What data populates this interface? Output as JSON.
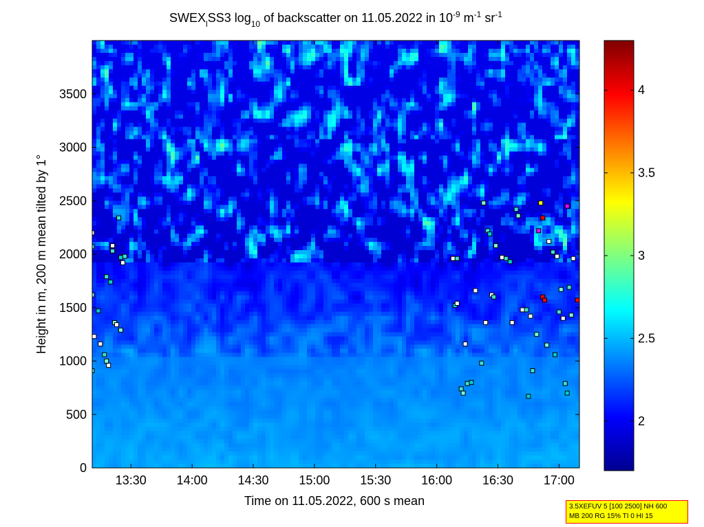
{
  "title": {
    "prefix": "SWEX",
    "subscript_1": "l",
    "middle": "SS3 log",
    "subscript_2": "10",
    "after_log": " of backscatter on 11.05.2022 in 10",
    "exp1": "-9",
    "unit_m": " m",
    "exp2": "-1",
    "unit_sr": " sr",
    "exp3": "-1"
  },
  "chart_data": {
    "type": "heatmap",
    "xlabel": "Time on 11.05.2022, 600 s mean",
    "ylabel": "Height in m, 200 m mean tilted by 1°",
    "x_range": [
      "13:11",
      "17:10"
    ],
    "x_ticks": [
      "13:30",
      "14:00",
      "14:30",
      "15:00",
      "15:30",
      "16:00",
      "16:30",
      "17:00"
    ],
    "ylim": [
      0,
      4000
    ],
    "y_ticks": [
      0,
      500,
      1000,
      1500,
      2000,
      2500,
      3000,
      3500
    ],
    "colorbar": {
      "range": [
        1.7,
        4.3
      ],
      "ticks": [
        2,
        2.5,
        3,
        3.5,
        4
      ],
      "colormap": "jet"
    },
    "cloud_markers_description": "cloud-base markers at scattered points",
    "marker_points": [
      {
        "t": "13:11",
        "h": 2200
      },
      {
        "t": "13:11",
        "h": 2070
      },
      {
        "t": "13:11",
        "h": 1620
      },
      {
        "t": "13:12",
        "h": 1230
      },
      {
        "t": "13:11",
        "h": 910
      },
      {
        "t": "13:14",
        "h": 1470
      },
      {
        "t": "13:15",
        "h": 1160
      },
      {
        "t": "13:17",
        "h": 1060
      },
      {
        "t": "13:18",
        "h": 1000
      },
      {
        "t": "13:19",
        "h": 960
      },
      {
        "t": "13:18",
        "h": 1790
      },
      {
        "t": "13:20",
        "h": 1740
      },
      {
        "t": "13:21",
        "h": 2080
      },
      {
        "t": "13:21",
        "h": 2030
      },
      {
        "t": "13:22",
        "h": 1360
      },
      {
        "t": "13:23",
        "h": 1340
      },
      {
        "t": "13:24",
        "h": 2340
      },
      {
        "t": "13:25",
        "h": 1970
      },
      {
        "t": "13:26",
        "h": 1920
      },
      {
        "t": "13:27",
        "h": 1980
      },
      {
        "t": "13:25",
        "h": 1290
      },
      {
        "t": "16:08",
        "h": 1960
      },
      {
        "t": "16:10",
        "h": 1960
      },
      {
        "t": "16:09",
        "h": 1520
      },
      {
        "t": "16:10",
        "h": 1540
      },
      {
        "t": "16:12",
        "h": 740
      },
      {
        "t": "16:13",
        "h": 700
      },
      {
        "t": "16:14",
        "h": 1160
      },
      {
        "t": "16:15",
        "h": 790
      },
      {
        "t": "16:17",
        "h": 800
      },
      {
        "t": "16:19",
        "h": 1660
      },
      {
        "t": "16:22",
        "h": 980
      },
      {
        "t": "16:23",
        "h": 2480
      },
      {
        "t": "16:24",
        "h": 1360
      },
      {
        "t": "16:25",
        "h": 2220
      },
      {
        "t": "16:26",
        "h": 2190
      },
      {
        "t": "16:27",
        "h": 1620
      },
      {
        "t": "16:28",
        "h": 1600
      },
      {
        "t": "16:29",
        "h": 2080
      },
      {
        "t": "16:32",
        "h": 1970
      },
      {
        "t": "16:34",
        "h": 1960
      },
      {
        "t": "16:36",
        "h": 1930
      },
      {
        "t": "16:37",
        "h": 1360
      },
      {
        "t": "16:39",
        "h": 2420
      },
      {
        "t": "16:40",
        "h": 2360
      },
      {
        "t": "16:42",
        "h": 1480
      },
      {
        "t": "16:44",
        "h": 1480
      },
      {
        "t": "16:45",
        "h": 670
      },
      {
        "t": "16:46",
        "h": 1420
      },
      {
        "t": "16:47",
        "h": 910
      },
      {
        "t": "16:49",
        "h": 1250
      },
      {
        "t": "16:50",
        "h": 2220
      },
      {
        "t": "16:51",
        "h": 2480
      },
      {
        "t": "16:52",
        "h": 2340
      },
      {
        "t": "16:52",
        "h": 1600
      },
      {
        "t": "16:53",
        "h": 1570
      },
      {
        "t": "16:54",
        "h": 1150
      },
      {
        "t": "16:55",
        "h": 2120
      },
      {
        "t": "16:57",
        "h": 2020
      },
      {
        "t": "16:58",
        "h": 1060
      },
      {
        "t": "16:59",
        "h": 1980
      },
      {
        "t": "17:00",
        "h": 1460
      },
      {
        "t": "17:01",
        "h": 1670
      },
      {
        "t": "17:02",
        "h": 1400
      },
      {
        "t": "17:03",
        "h": 790
      },
      {
        "t": "17:04",
        "h": 700
      },
      {
        "t": "17:04",
        "h": 2450
      },
      {
        "t": "17:05",
        "h": 1690
      },
      {
        "t": "17:06",
        "h": 1430
      },
      {
        "t": "17:07",
        "h": 1960
      },
      {
        "t": "17:09",
        "h": 1570
      }
    ]
  },
  "info_box": {
    "line1": "3.5XEFUV 5 [100 2500] NH 600",
    "line2": "MB 200 RG 15% TI 0 HI 15"
  },
  "colors": {
    "background": "#ffffff",
    "box_fill": "#ffff00",
    "box_border": "#ff0000"
  }
}
